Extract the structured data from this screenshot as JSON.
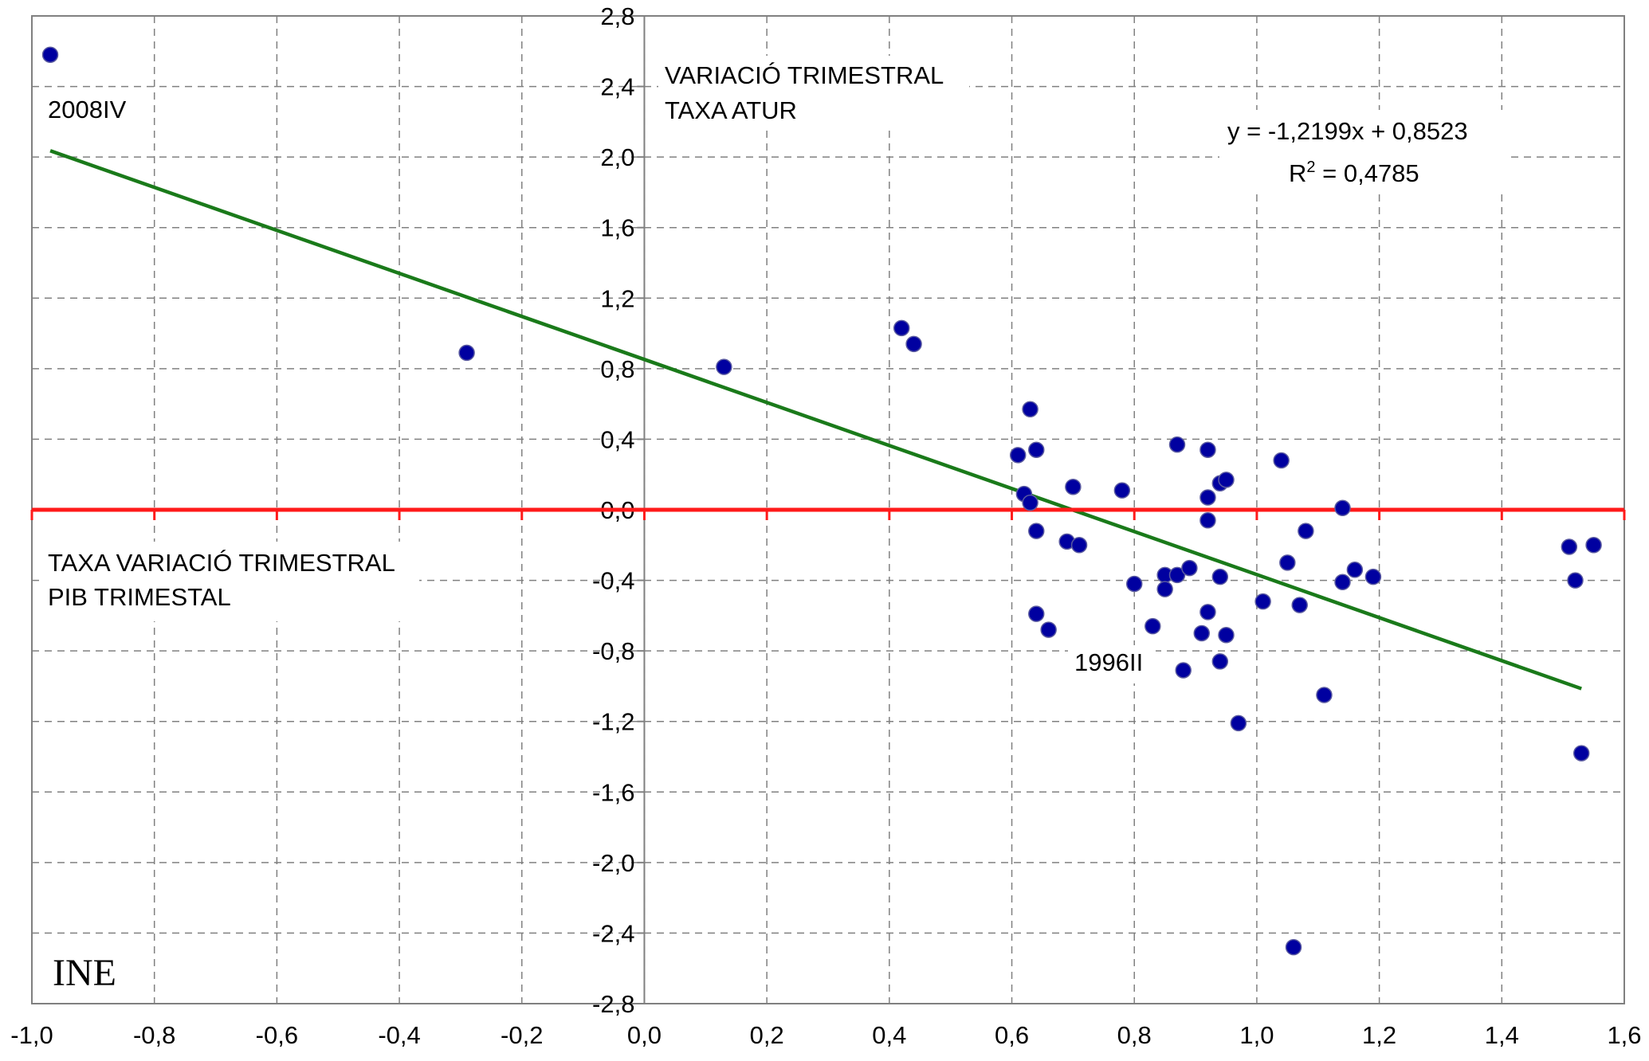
{
  "chart_data": {
    "type": "scatter",
    "title": "",
    "xlim": [
      -1.0,
      1.6
    ],
    "ylim": [
      -2.8,
      2.8
    ],
    "x_ticks": [
      "-1,0",
      "-0,8",
      "-0,6",
      "-0,4",
      "-0,2",
      "0,0",
      "0,2",
      "0,4",
      "0,6",
      "0,8",
      "1,0",
      "1,2",
      "1,4",
      "1,6"
    ],
    "y_ticks": [
      "2,8",
      "2,4",
      "2,0",
      "1,6",
      "1,2",
      "0,8",
      "0,4",
      "0,0",
      "-0,4",
      "-0,8",
      "-1,2",
      "-1,6",
      "-2,0",
      "-2,4",
      "-2,8"
    ],
    "grid": true,
    "point_color": "#0000a0",
    "trendline_color": "#1a7a1a",
    "zero_line_color": "#ff1a1a",
    "series": [
      {
        "points": [
          [
            -0.97,
            2.58
          ],
          [
            -0.29,
            0.89
          ],
          [
            0.13,
            0.81
          ],
          [
            0.42,
            1.03
          ],
          [
            0.44,
            0.94
          ],
          [
            0.63,
            0.57
          ],
          [
            0.61,
            0.31
          ],
          [
            0.64,
            0.34
          ],
          [
            0.62,
            0.09
          ],
          [
            0.63,
            0.04
          ],
          [
            0.64,
            -0.12
          ],
          [
            0.69,
            -0.18
          ],
          [
            0.71,
            -0.2
          ],
          [
            0.7,
            0.13
          ],
          [
            0.78,
            0.11
          ],
          [
            0.64,
            -0.59
          ],
          [
            0.66,
            -0.68
          ],
          [
            0.8,
            -0.42
          ],
          [
            0.83,
            -0.66
          ],
          [
            0.85,
            -0.37
          ],
          [
            0.85,
            -0.45
          ],
          [
            0.87,
            -0.37
          ],
          [
            0.89,
            -0.33
          ],
          [
            0.87,
            0.37
          ],
          [
            0.92,
            0.34
          ],
          [
            0.94,
            0.15
          ],
          [
            0.95,
            0.17
          ],
          [
            0.92,
            0.07
          ],
          [
            0.92,
            -0.06
          ],
          [
            0.94,
            -0.38
          ],
          [
            0.91,
            -0.7
          ],
          [
            0.92,
            -0.58
          ],
          [
            0.94,
            -0.86
          ],
          [
            0.95,
            -0.71
          ],
          [
            0.88,
            -0.91
          ],
          [
            0.97,
            -1.21
          ],
          [
            1.01,
            -0.52
          ],
          [
            1.04,
            0.28
          ],
          [
            1.05,
            -0.3
          ],
          [
            1.07,
            -0.54
          ],
          [
            1.08,
            -0.12
          ],
          [
            1.11,
            -1.05
          ],
          [
            1.14,
            0.01
          ],
          [
            1.14,
            -0.41
          ],
          [
            1.16,
            -0.34
          ],
          [
            1.19,
            -0.38
          ],
          [
            1.06,
            -2.48
          ],
          [
            1.51,
            -0.21
          ],
          [
            1.52,
            -0.4
          ],
          [
            1.55,
            -0.2
          ],
          [
            1.53,
            -1.38
          ]
        ]
      }
    ],
    "trendline": {
      "slope": -1.2199,
      "intercept": 0.8523,
      "x_range": [
        -0.97,
        1.53
      ]
    },
    "annotations": {
      "point_label_top": "2008IV",
      "point_label_mid": "1996II",
      "y_caption_line1": "VARIACIÓ TRIMESTRAL",
      "y_caption_line2": "TAXA ATUR",
      "x_caption_line1": "TAXA VARIACIÓ TRIMESTRAL",
      "x_caption_line2": "PIB TRIMESTAL",
      "equation": "y = -1,2199x + 0,8523",
      "r2_prefix": "R",
      "r2_sup": "2",
      "r2_value": " = 0,4785",
      "source": "INE"
    }
  }
}
